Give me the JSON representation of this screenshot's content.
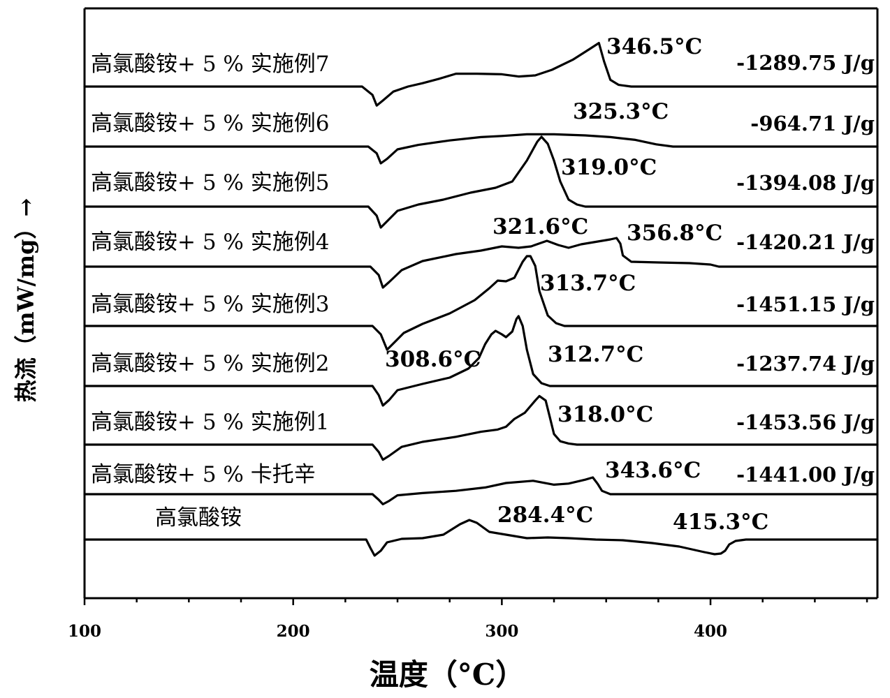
{
  "chart_data": {
    "type": "line",
    "xlabel": "温度（°C）",
    "ylabel": "热流（mW/mg）→",
    "xlim": [
      100,
      480
    ],
    "x_ticks": [
      100,
      200,
      300,
      400
    ],
    "grid": false,
    "legend": "none",
    "series": [
      {
        "name": "高氯酸铵+ 5 % 实施例7",
        "enthalpy": "-1289.75 J/g",
        "peaks": [
          {
            "x": 346.5,
            "label": "346.5°C"
          }
        ],
        "points": [
          [
            100,
            0
          ],
          [
            233,
            0
          ],
          [
            238,
            -0.15
          ],
          [
            240,
            -0.34
          ],
          [
            243,
            -0.25
          ],
          [
            248,
            -0.09
          ],
          [
            255,
            0.0
          ],
          [
            262,
            0.06
          ],
          [
            270,
            0.14
          ],
          [
            278,
            0.23
          ],
          [
            288,
            0.23
          ],
          [
            300,
            0.22
          ],
          [
            308,
            0.18
          ],
          [
            316,
            0.2
          ],
          [
            324,
            0.3
          ],
          [
            334,
            0.48
          ],
          [
            342,
            0.67
          ],
          [
            346.5,
            0.78
          ],
          [
            349,
            0.45
          ],
          [
            352,
            0.12
          ],
          [
            356,
            0.03
          ],
          [
            362,
            0
          ],
          [
            480,
            0
          ]
        ]
      },
      {
        "name": "高氯酸铵+ 5 % 实施例6",
        "enthalpy": "-964.71 J/g",
        "peaks": [
          {
            "x": 325.3,
            "label": "325.3°C"
          }
        ],
        "points": [
          [
            100,
            0
          ],
          [
            236,
            0
          ],
          [
            240,
            -0.12
          ],
          [
            242,
            -0.3
          ],
          [
            245,
            -0.22
          ],
          [
            250,
            -0.05
          ],
          [
            260,
            0.03
          ],
          [
            275,
            0.11
          ],
          [
            290,
            0.17
          ],
          [
            300,
            0.19
          ],
          [
            312,
            0.22
          ],
          [
            325,
            0.22
          ],
          [
            340,
            0.2
          ],
          [
            352,
            0.17
          ],
          [
            364,
            0.12
          ],
          [
            374,
            0.04
          ],
          [
            382,
            0
          ],
          [
            480,
            0
          ]
        ]
      },
      {
        "name": "高氯酸铵+ 5 % 实施例5",
        "enthalpy": "-1394.08 J/g",
        "peaks": [
          {
            "x": 319.0,
            "label": "319.0°C"
          }
        ],
        "points": [
          [
            100,
            0
          ],
          [
            236,
            0
          ],
          [
            240,
            -0.13
          ],
          [
            242,
            -0.3
          ],
          [
            245,
            -0.21
          ],
          [
            250,
            -0.06
          ],
          [
            260,
            0.03
          ],
          [
            272,
            0.1
          ],
          [
            285,
            0.2
          ],
          [
            297,
            0.27
          ],
          [
            305,
            0.36
          ],
          [
            312,
            0.66
          ],
          [
            317,
            0.93
          ],
          [
            319,
            1.0
          ],
          [
            322,
            0.9
          ],
          [
            325,
            0.66
          ],
          [
            328,
            0.36
          ],
          [
            332,
            0.1
          ],
          [
            336,
            0.03
          ],
          [
            340,
            0
          ],
          [
            480,
            0
          ]
        ]
      },
      {
        "name": "高氯酸铵+ 5 % 实施例4",
        "enthalpy": "-1420.21 J/g",
        "peaks": [
          {
            "x": 321.6,
            "label": "321.6°C"
          },
          {
            "x": 356.8,
            "label": "356.8°C"
          }
        ],
        "points": [
          [
            100,
            0
          ],
          [
            237,
            0
          ],
          [
            241,
            -0.12
          ],
          [
            243,
            -0.3
          ],
          [
            246,
            -0.22
          ],
          [
            252,
            -0.05
          ],
          [
            262,
            0.08
          ],
          [
            278,
            0.18
          ],
          [
            290,
            0.23
          ],
          [
            300,
            0.29
          ],
          [
            308,
            0.27
          ],
          [
            314,
            0.29
          ],
          [
            321.6,
            0.37
          ],
          [
            327,
            0.31
          ],
          [
            332,
            0.27
          ],
          [
            338,
            0.32
          ],
          [
            346,
            0.36
          ],
          [
            352,
            0.39
          ],
          [
            355,
            0.41
          ],
          [
            356.8,
            0.33
          ],
          [
            358,
            0.16
          ],
          [
            362,
            0.07
          ],
          [
            375,
            0.06
          ],
          [
            390,
            0.05
          ],
          [
            400,
            0.03
          ],
          [
            404,
            0.0
          ],
          [
            480,
            0
          ]
        ]
      },
      {
        "name": "高氯酸铵+ 5 % 实施例3",
        "enthalpy": "-1451.15 J/g",
        "peaks": [
          {
            "x": 313.7,
            "label": "313.7°C"
          }
        ],
        "points": [
          [
            100,
            0
          ],
          [
            238,
            0
          ],
          [
            242,
            -0.12
          ],
          [
            245,
            -0.34
          ],
          [
            248,
            -0.25
          ],
          [
            253,
            -0.1
          ],
          [
            262,
            0.03
          ],
          [
            275,
            0.18
          ],
          [
            287,
            0.37
          ],
          [
            294,
            0.54
          ],
          [
            298,
            0.65
          ],
          [
            302,
            0.64
          ],
          [
            306,
            0.69
          ],
          [
            310,
            0.92
          ],
          [
            312,
            1.0
          ],
          [
            313.7,
            1.0
          ],
          [
            316,
            0.86
          ],
          [
            318,
            0.5
          ],
          [
            322,
            0.15
          ],
          [
            326,
            0.04
          ],
          [
            330,
            0
          ],
          [
            480,
            0
          ]
        ]
      },
      {
        "name": "高氯酸铵+ 5 % 实施例2",
        "enthalpy": "-1237.74 J/g",
        "peaks": [
          {
            "x": 297,
            "label": "308.6°C"
          },
          {
            "x": 308,
            "label": "312.7°C"
          }
        ],
        "points": [
          [
            100,
            0
          ],
          [
            238,
            0
          ],
          [
            241,
            -0.13
          ],
          [
            243,
            -0.28
          ],
          [
            246,
            -0.2
          ],
          [
            250,
            -0.06
          ],
          [
            262,
            0.03
          ],
          [
            275,
            0.12
          ],
          [
            284,
            0.25
          ],
          [
            289,
            0.4
          ],
          [
            292,
            0.6
          ],
          [
            295,
            0.74
          ],
          [
            297,
            0.79
          ],
          [
            300,
            0.74
          ],
          [
            302,
            0.7
          ],
          [
            305,
            0.78
          ],
          [
            307,
            0.96
          ],
          [
            308,
            1.0
          ],
          [
            310,
            0.86
          ],
          [
            312,
            0.52
          ],
          [
            315,
            0.17
          ],
          [
            319,
            0.04
          ],
          [
            323,
            0
          ],
          [
            480,
            0
          ]
        ]
      },
      {
        "name": "高氯酸铵+ 5 % 实施例1",
        "enthalpy": "-1453.56 J/g",
        "peaks": [
          {
            "x": 318.0,
            "label": "318.0°C"
          }
        ],
        "points": [
          [
            100,
            0
          ],
          [
            238,
            0
          ],
          [
            241,
            -0.13
          ],
          [
            243,
            -0.27
          ],
          [
            246,
            -0.2
          ],
          [
            252,
            -0.04
          ],
          [
            262,
            0.05
          ],
          [
            278,
            0.14
          ],
          [
            290,
            0.23
          ],
          [
            298,
            0.27
          ],
          [
            302,
            0.32
          ],
          [
            306,
            0.46
          ],
          [
            311,
            0.57
          ],
          [
            316,
            0.79
          ],
          [
            318,
            0.87
          ],
          [
            321,
            0.79
          ],
          [
            323,
            0.49
          ],
          [
            325,
            0.19
          ],
          [
            328,
            0.06
          ],
          [
            332,
            0.02
          ],
          [
            336,
            0
          ],
          [
            480,
            0
          ]
        ]
      },
      {
        "name": "高氯酸铵+ 5 % 卡托辛",
        "enthalpy": "-1441.00 J/g",
        "peaks": [
          {
            "x": 343.6,
            "label": "343.6°C"
          }
        ],
        "points": [
          [
            100,
            0
          ],
          [
            238,
            0
          ],
          [
            241,
            -0.1
          ],
          [
            243,
            -0.18
          ],
          [
            246,
            -0.12
          ],
          [
            250,
            -0.02
          ],
          [
            262,
            0.02
          ],
          [
            278,
            0.06
          ],
          [
            292,
            0.12
          ],
          [
            302,
            0.2
          ],
          [
            315,
            0.24
          ],
          [
            325,
            0.17
          ],
          [
            332,
            0.19
          ],
          [
            340,
            0.26
          ],
          [
            343.6,
            0.3
          ],
          [
            346,
            0.18
          ],
          [
            348,
            0.06
          ],
          [
            352,
            0.0
          ],
          [
            480,
            0
          ]
        ]
      },
      {
        "name": "高氯酸铵",
        "enthalpy": "",
        "peaks": [
          {
            "x": 284.4,
            "label": "284.4°C"
          },
          {
            "x": 415.3,
            "label": "415.3°C"
          }
        ],
        "points": [
          [
            100,
            0
          ],
          [
            235,
            0
          ],
          [
            237,
            -0.12
          ],
          [
            239,
            -0.23
          ],
          [
            242,
            -0.16
          ],
          [
            245,
            -0.04
          ],
          [
            252,
            0.01
          ],
          [
            262,
            0.02
          ],
          [
            272,
            0.07
          ],
          [
            280,
            0.22
          ],
          [
            284.4,
            0.28
          ],
          [
            288,
            0.24
          ],
          [
            294,
            0.11
          ],
          [
            302,
            0.07
          ],
          [
            312,
            0.02
          ],
          [
            322,
            0.03
          ],
          [
            332,
            0.02
          ],
          [
            345,
            0.0
          ],
          [
            358,
            -0.01
          ],
          [
            372,
            -0.05
          ],
          [
            385,
            -0.1
          ],
          [
            397,
            -0.18
          ],
          [
            402,
            -0.21
          ],
          [
            405,
            -0.2
          ],
          [
            407,
            -0.16
          ],
          [
            409,
            -0.07
          ],
          [
            412,
            -0.02
          ],
          [
            417,
            0
          ],
          [
            480,
            0
          ]
        ]
      }
    ]
  }
}
